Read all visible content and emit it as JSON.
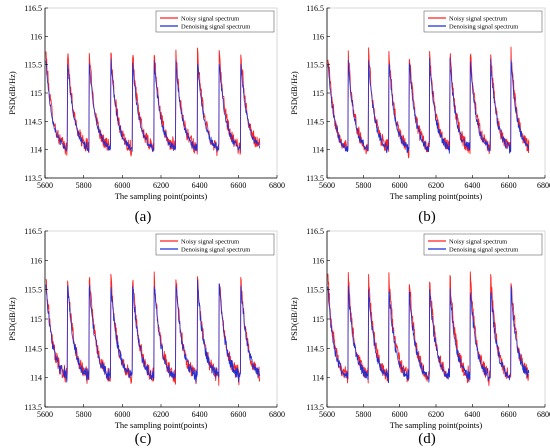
{
  "figure": {
    "panel_labels": [
      "(a)",
      "(b)",
      "(c)",
      "(d)"
    ]
  },
  "colors": {
    "noisy": "#ff2020",
    "denoised": "#1f2fd6",
    "axis": "#000000",
    "frame": "#cfcfcf"
  },
  "chart_data": [
    {
      "type": "line",
      "xlabel": "The sampling point(points)",
      "ylabel": "PSD(dB/Hz)",
      "xlim": [
        5600,
        6800
      ],
      "ylim": [
        113.5,
        116.5
      ],
      "xticks": [
        5600,
        5800,
        6000,
        6200,
        6400,
        6600,
        6800
      ],
      "yticks": [
        113.5,
        114,
        114.5,
        115,
        115.5,
        116,
        116.5
      ],
      "legend": "top-right",
      "series": [
        {
          "name": "Noisy signal spectrum",
          "color": "#ff2020",
          "pattern": {
            "period": 112,
            "start": 5605,
            "end": 6712,
            "peak": 115.7,
            "trough": 113.95,
            "noise": 0.12
          }
        },
        {
          "name": "Denoising signal spectrum",
          "color": "#1f2fd6",
          "pattern": {
            "period": 112,
            "start": 5605,
            "end": 6712,
            "peak": 115.55,
            "trough": 113.95,
            "noise": 0.06
          }
        }
      ]
    },
    {
      "type": "line",
      "xlabel": "The sampling point(points)",
      "ylabel": "PSD(dB/Hz)",
      "xlim": [
        5600,
        6800
      ],
      "ylim": [
        113.5,
        116.5
      ],
      "xticks": [
        5600,
        5800,
        6000,
        6200,
        6400,
        6600,
        6800
      ],
      "yticks": [
        113.5,
        114,
        114.5,
        115,
        115.5,
        116,
        116.5
      ],
      "legend": "top-right",
      "series": [
        {
          "name": "Noisy signal spectrum",
          "color": "#ff2020",
          "pattern": {
            "period": 112,
            "start": 5605,
            "end": 6712,
            "peak": 115.7,
            "trough": 113.95,
            "noise": 0.12
          }
        },
        {
          "name": "Denoising signal spectrum",
          "color": "#1f2fd6",
          "pattern": {
            "period": 112,
            "start": 5605,
            "end": 6712,
            "peak": 115.55,
            "trough": 113.95,
            "noise": 0.07
          }
        }
      ]
    },
    {
      "type": "line",
      "xlabel": "The sampling point(points)",
      "ylabel": "PSD(dB/Hz)",
      "xlim": [
        5600,
        6800
      ],
      "ylim": [
        113.5,
        116.5
      ],
      "xticks": [
        5600,
        5800,
        6000,
        6200,
        6400,
        6600,
        6800
      ],
      "yticks": [
        113.5,
        114,
        114.5,
        115,
        115.5,
        116,
        116.5
      ],
      "legend": "top-right",
      "series": [
        {
          "name": "Noisy signal spectrum",
          "color": "#ff2020",
          "pattern": {
            "period": 112,
            "start": 5605,
            "end": 6712,
            "peak": 115.7,
            "trough": 113.95,
            "noise": 0.12
          }
        },
        {
          "name": "Denoising signal spectrum",
          "color": "#1f2fd6",
          "pattern": {
            "period": 112,
            "start": 5605,
            "end": 6712,
            "peak": 115.6,
            "trough": 113.95,
            "noise": 0.09
          }
        }
      ]
    },
    {
      "type": "line",
      "xlabel": "The sampling point(points)",
      "ylabel": "PSD(dB/Hz)",
      "xlim": [
        5600,
        6800
      ],
      "ylim": [
        113.5,
        116.5
      ],
      "xticks": [
        5600,
        5800,
        6000,
        6200,
        6400,
        6600,
        6800
      ],
      "yticks": [
        113.5,
        114,
        114.5,
        115,
        115.5,
        116,
        116.5
      ],
      "legend": "top-right",
      "series": [
        {
          "name": "Noisy signal spectrum",
          "color": "#ff2020",
          "pattern": {
            "period": 112,
            "start": 5605,
            "end": 6712,
            "peak": 115.7,
            "trough": 113.95,
            "noise": 0.12
          }
        },
        {
          "name": "Denoising signal spectrum",
          "color": "#1f2fd6",
          "pattern": {
            "period": 112,
            "start": 5605,
            "end": 6712,
            "peak": 115.5,
            "trough": 113.95,
            "noise": 0.08
          }
        }
      ]
    }
  ]
}
